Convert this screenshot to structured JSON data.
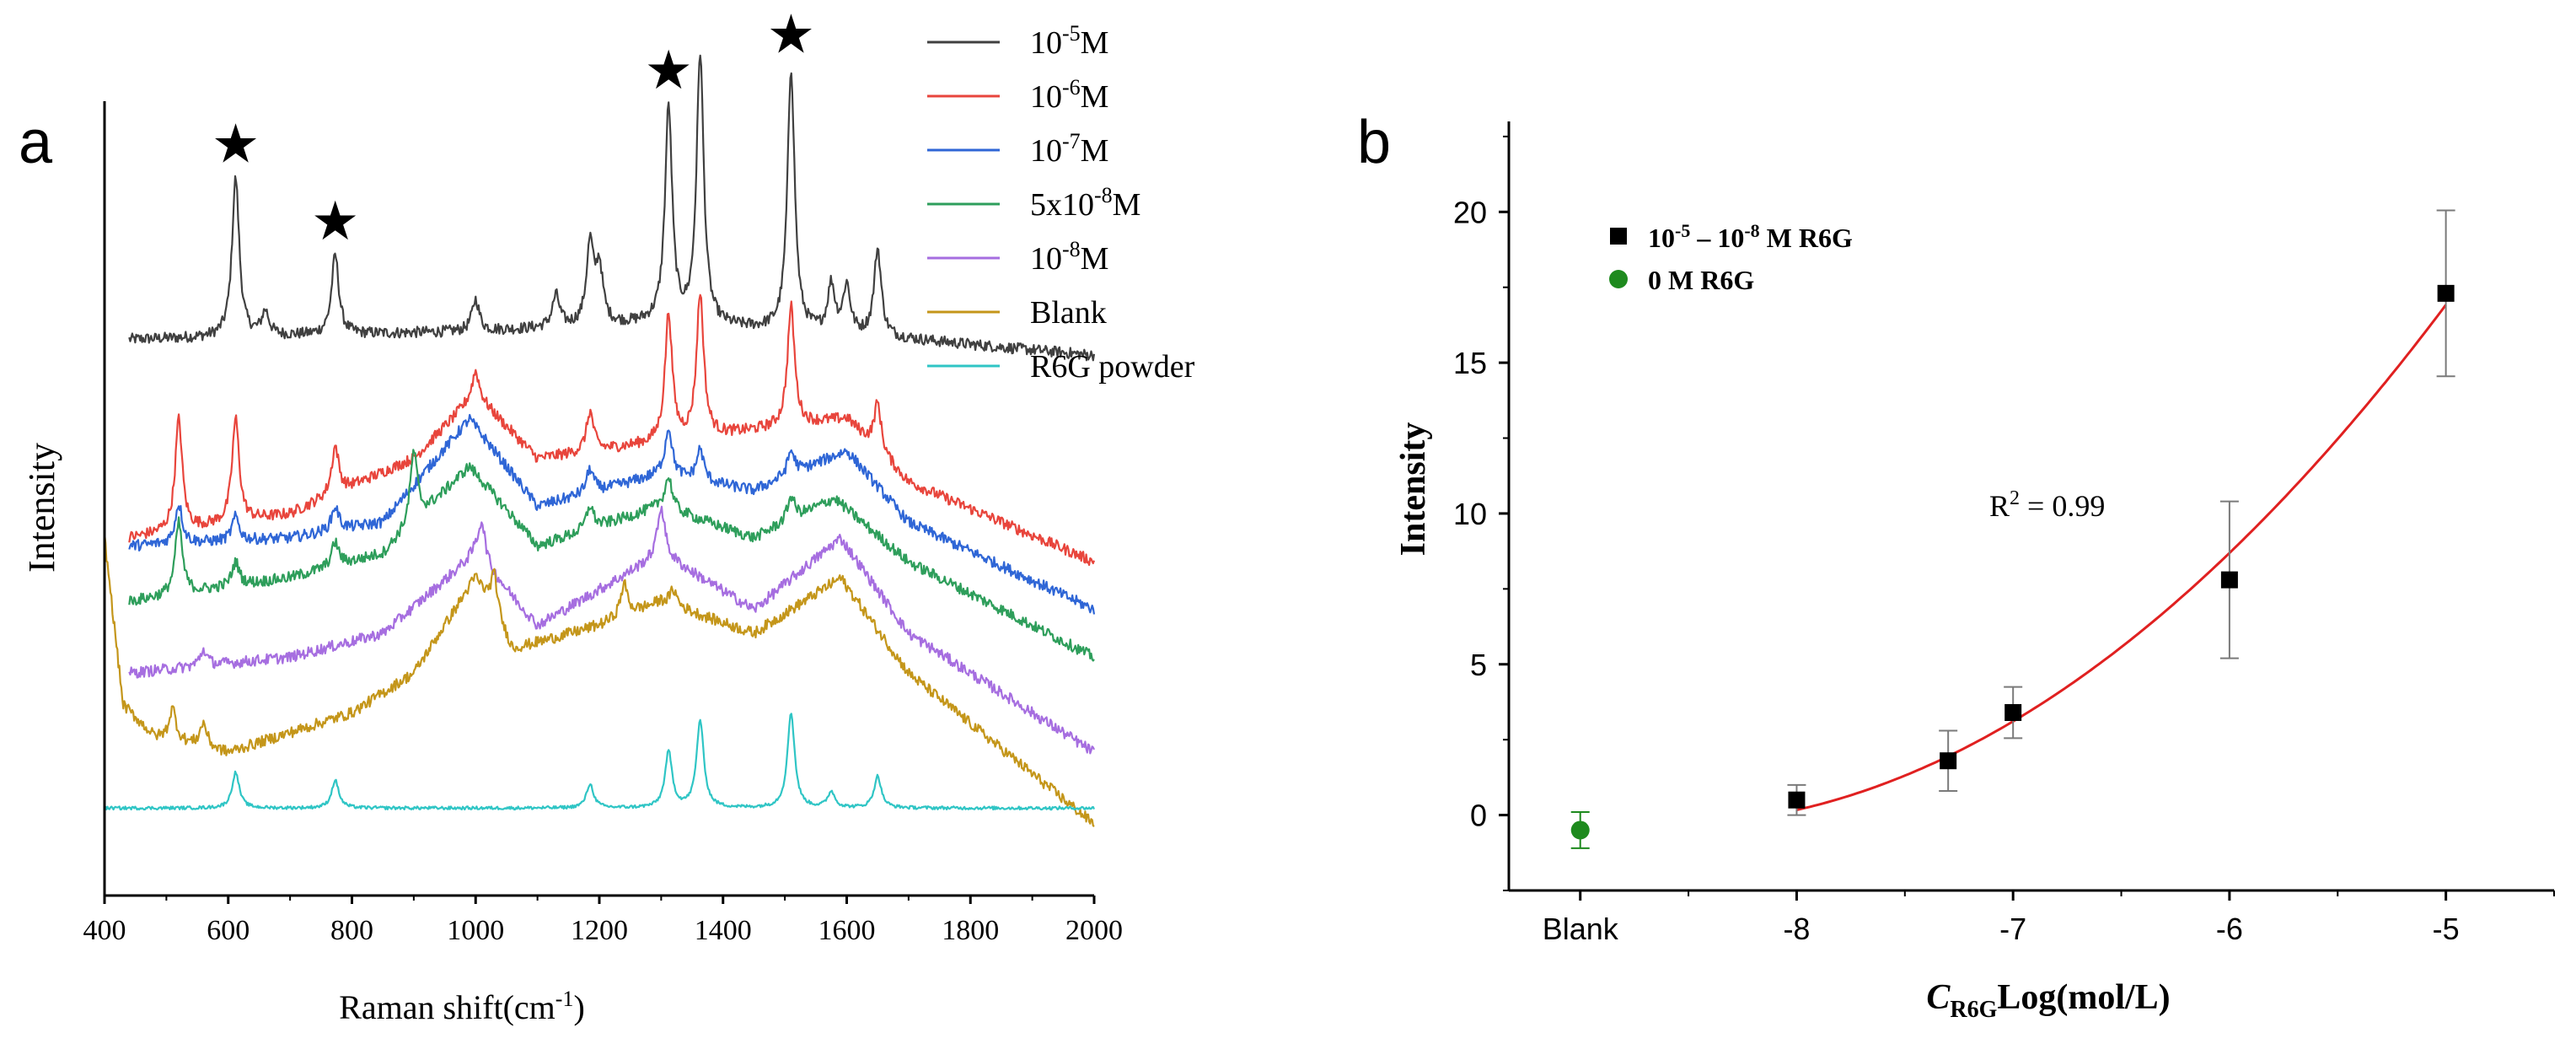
{
  "chart_data": [
    {
      "panel": "a",
      "type": "line",
      "title": "",
      "xlabel": "Raman shift(cm",
      "xlabel_sup": "-1",
      "xlabel_end": ")",
      "ylabel": "Intensity",
      "xlim": [
        400,
        2000
      ],
      "x_ticks": [
        "400",
        "600",
        "800",
        "1000",
        "1200",
        "1400",
        "1600",
        "1800",
        "2000"
      ],
      "legend_position": "top-right",
      "series": [
        {
          "name": "10-5M",
          "color": "#404040",
          "start_x": 440,
          "baseline": [
            [
              440,
              0.7
            ],
            [
              1000,
              0.71
            ],
            [
              1300,
              0.72
            ],
            [
              1700,
              0.7
            ],
            [
              2000,
              0.68
            ]
          ],
          "peaks": [
            [
              612,
              0.2
            ],
            [
              660,
              0.03
            ],
            [
              773,
              0.1
            ],
            [
              1000,
              0.04
            ],
            [
              1130,
              0.04
            ],
            [
              1185,
              0.1
            ],
            [
              1200,
              0.07
            ],
            [
              1312,
              0.27
            ],
            [
              1363,
              0.34
            ],
            [
              1510,
              0.33
            ],
            [
              1575,
              0.06
            ],
            [
              1600,
              0.06
            ],
            [
              1650,
              0.11
            ]
          ]
        },
        {
          "name": "10-6M",
          "color": "#e8453c",
          "start_x": 440,
          "baseline": [
            [
              440,
              0.45
            ],
            [
              700,
              0.48
            ],
            [
              900,
              0.55
            ],
            [
              1000,
              0.63
            ],
            [
              1100,
              0.55
            ],
            [
              1300,
              0.57
            ],
            [
              1500,
              0.59
            ],
            [
              1600,
              0.6
            ],
            [
              1700,
              0.52
            ],
            [
              2000,
              0.42
            ]
          ],
          "peaks": [
            [
              520,
              0.14
            ],
            [
              612,
              0.13
            ],
            [
              773,
              0.06
            ],
            [
              1000,
              0.03
            ],
            [
              1185,
              0.05
            ],
            [
              1312,
              0.16
            ],
            [
              1363,
              0.18
            ],
            [
              1510,
              0.15
            ],
            [
              1650,
              0.06
            ]
          ]
        },
        {
          "name": "10-7M",
          "color": "#2f66d6",
          "start_x": 440,
          "baseline": [
            [
              440,
              0.44
            ],
            [
              700,
              0.45
            ],
            [
              850,
              0.47
            ],
            [
              990,
              0.6
            ],
            [
              1100,
              0.49
            ],
            [
              1300,
              0.53
            ],
            [
              1450,
              0.51
            ],
            [
              1600,
              0.56
            ],
            [
              1700,
              0.47
            ],
            [
              2000,
              0.36
            ]
          ],
          "peaks": [
            [
              520,
              0.05
            ],
            [
              612,
              0.03
            ],
            [
              773,
              0.03
            ],
            [
              1185,
              0.03
            ],
            [
              1312,
              0.06
            ],
            [
              1363,
              0.04
            ],
            [
              1510,
              0.03
            ]
          ]
        },
        {
          "name": "5x10-8M",
          "color": "#2e9e5b",
          "start_x": 440,
          "baseline": [
            [
              440,
              0.37
            ],
            [
              700,
              0.4
            ],
            [
              850,
              0.43
            ],
            [
              990,
              0.54
            ],
            [
              1100,
              0.44
            ],
            [
              1300,
              0.49
            ],
            [
              1450,
              0.45
            ],
            [
              1580,
              0.5
            ],
            [
              1700,
              0.42
            ],
            [
              2000,
              0.3
            ]
          ],
          "peaks": [
            [
              520,
              0.09
            ],
            [
              612,
              0.03
            ],
            [
              773,
              0.03
            ],
            [
              900,
              0.09
            ],
            [
              1185,
              0.03
            ],
            [
              1312,
              0.04
            ],
            [
              1510,
              0.03
            ]
          ]
        },
        {
          "name": "10-8M",
          "color": "#a66ee0",
          "start_x": 440,
          "baseline": [
            [
              440,
              0.28
            ],
            [
              700,
              0.3
            ],
            [
              850,
              0.33
            ],
            [
              1000,
              0.43
            ],
            [
              1100,
              0.34
            ],
            [
              1300,
              0.43
            ],
            [
              1450,
              0.36
            ],
            [
              1590,
              0.45
            ],
            [
              1700,
              0.33
            ],
            [
              2000,
              0.18
            ]
          ],
          "peaks": [
            [
              560,
              0.02
            ],
            [
              1010,
              0.05
            ],
            [
              1300,
              0.06
            ]
          ]
        },
        {
          "name": "Blank",
          "color": "#c4961a",
          "start_x": 400,
          "baseline": [
            [
              400,
              0.45
            ],
            [
              430,
              0.24
            ],
            [
              480,
              0.2
            ],
            [
              600,
              0.18
            ],
            [
              800,
              0.23
            ],
            [
              900,
              0.28
            ],
            [
              1000,
              0.4
            ],
            [
              1060,
              0.31
            ],
            [
              1200,
              0.34
            ],
            [
              1300,
              0.37
            ],
            [
              1450,
              0.33
            ],
            [
              1590,
              0.4
            ],
            [
              1700,
              0.28
            ],
            [
              2000,
              0.09
            ]
          ],
          "peaks": [
            [
              510,
              0.04
            ],
            [
              560,
              0.03
            ],
            [
              1030,
              0.05
            ],
            [
              1240,
              0.04
            ],
            [
              1320,
              0.02
            ]
          ]
        },
        {
          "name": "R6G powder",
          "color": "#2fc5c5",
          "start_x": 400,
          "baseline": [
            [
              400,
              0.11
            ],
            [
              2000,
              0.11
            ]
          ],
          "peaks": [
            [
              612,
              0.045
            ],
            [
              773,
              0.035
            ],
            [
              1185,
              0.03
            ],
            [
              1312,
              0.07
            ],
            [
              1363,
              0.11
            ],
            [
              1510,
              0.12
            ],
            [
              1575,
              0.02
            ],
            [
              1650,
              0.04
            ]
          ]
        }
      ],
      "legend": [
        {
          "label": "10",
          "sup": "-5",
          "rest": "M",
          "color": "#404040"
        },
        {
          "label": "10",
          "sup": "-6",
          "rest": "M",
          "color": "#e8453c"
        },
        {
          "label": "10",
          "sup": "-7",
          "rest": "M",
          "color": "#2f66d6"
        },
        {
          "label": "5x10",
          "sup": "-8",
          "rest": "M",
          "color": "#2e9e5b"
        },
        {
          "label": "10",
          "sup": "-8",
          "rest": "M",
          "color": "#a66ee0"
        },
        {
          "label": "Blank",
          "sup": "",
          "rest": "",
          "color": "#c4961a"
        },
        {
          "label": "R6G powder",
          "sup": "",
          "rest": "",
          "color": "#2fc5c5"
        }
      ],
      "annotations": [
        {
          "marker": "★",
          "x": 612
        },
        {
          "marker": "★",
          "x": 773
        },
        {
          "marker": "★",
          "x": 1312
        },
        {
          "marker": "★",
          "x": 1510
        }
      ]
    },
    {
      "panel": "b",
      "type": "scatter",
      "title": "",
      "xlabel_italic": "C",
      "xlabel_sub": "R6G",
      "xlabel_rest": "Log(mol/L)",
      "ylabel": "Intensity",
      "xlim": [
        -9.33,
        -4.5
      ],
      "ylim": [
        -2.5,
        23
      ],
      "x_ticks": [
        {
          "value": -9.0,
          "label": "Blank"
        },
        {
          "value": -8,
          "label": "-8"
        },
        {
          "value": -7,
          "label": "-7"
        },
        {
          "value": -6,
          "label": "-6"
        },
        {
          "value": -5,
          "label": "-5"
        }
      ],
      "y_ticks": [
        0,
        5,
        10,
        15,
        20
      ],
      "legend_position": "top-left",
      "series": [
        {
          "name": "10-5 – 10-8 M R6G",
          "color": "#000000",
          "marker": "square",
          "points": [
            {
              "x": -8,
              "y": 0.5,
              "err": 0.5
            },
            {
              "x": -7.3,
              "y": 1.8,
              "err": 1.0
            },
            {
              "x": -7,
              "y": 3.4,
              "err": 0.85
            },
            {
              "x": -6,
              "y": 7.8,
              "err": 2.6
            },
            {
              "x": -5,
              "y": 17.3,
              "err": 2.75
            }
          ]
        },
        {
          "name": "0 M R6G",
          "color": "#1e8a1e",
          "marker": "circle",
          "points": [
            {
              "x": -9.0,
              "y": -0.5,
              "err": 0.6
            }
          ]
        }
      ],
      "fit": {
        "color": "#e02020",
        "x_range": [
          -8,
          -5
        ],
        "coef": [
          97.73,
          22.775,
          1.3225
        ]
      },
      "legend": [
        {
          "label": "10",
          "sup1": "-5",
          "mid": " – 10",
          "sup2": "-8",
          "rest": " M R6G"
        },
        {
          "label": "0 M R6G"
        }
      ],
      "annotation": {
        "prefix": "R",
        "sup": "2",
        "rest": " = 0.99"
      }
    }
  ],
  "panel_labels": [
    "a",
    "b"
  ]
}
